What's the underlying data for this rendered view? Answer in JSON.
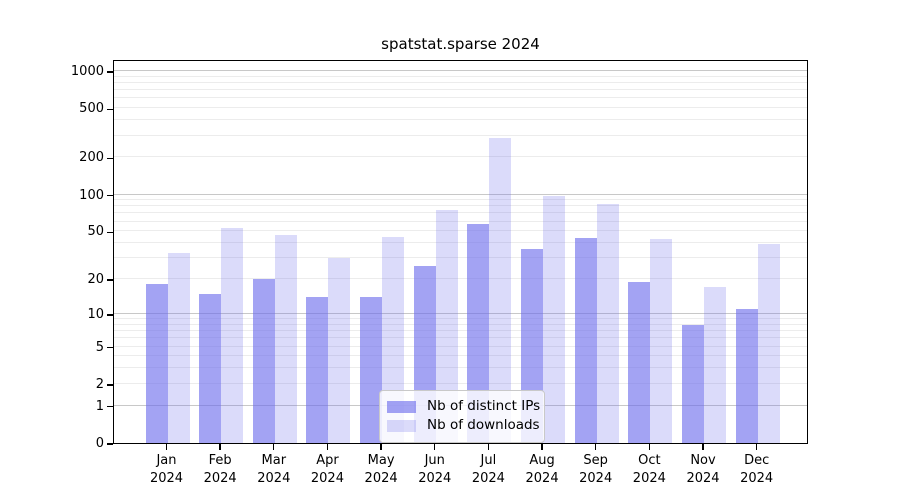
{
  "chart_data": {
    "type": "bar",
    "title": "spatstat.sparse 2024",
    "categories": [
      "Jan",
      "Feb",
      "Mar",
      "Apr",
      "May",
      "Jun",
      "Jul",
      "Aug",
      "Sep",
      "Oct",
      "Nov",
      "Dec"
    ],
    "year_suffix": "2024",
    "series": [
      {
        "name": "Nb of distinct IPs",
        "color": "rgba(106,106,235,0.62)",
        "values": [
          18,
          15,
          20,
          14,
          14,
          26,
          57,
          36,
          44,
          19,
          8,
          11
        ]
      },
      {
        "name": "Nb of downloads",
        "color": "rgba(106,106,235,0.24)",
        "values": [
          33,
          53,
          47,
          30,
          45,
          75,
          290,
          97,
          83,
          43,
          17,
          39
        ]
      }
    ],
    "yscale": "log1p",
    "ylim": [
      0,
      1250
    ],
    "yticks": [
      0,
      1,
      2,
      5,
      10,
      20,
      50,
      100,
      200,
      500,
      1000
    ],
    "major_gridlines": [
      1,
      10,
      100,
      1000
    ],
    "minor_gridlines": [
      2,
      3,
      4,
      5,
      6,
      7,
      8,
      9,
      20,
      30,
      40,
      50,
      60,
      70,
      80,
      90,
      200,
      300,
      400,
      500,
      600,
      700,
      800,
      900
    ],
    "grid": true,
    "legend_position": "bottom-center"
  },
  "colors": {
    "bar_fill_base": "#6a6aeb",
    "dark_bar_rendered": "#a6a6f1",
    "light_bar_rendered": "#dcdcf8",
    "major_grid": "#c8c8c8",
    "minor_grid": "#ececec",
    "axis": "#000000",
    "legend_border": "#c9c9c9",
    "text": "#000000"
  }
}
